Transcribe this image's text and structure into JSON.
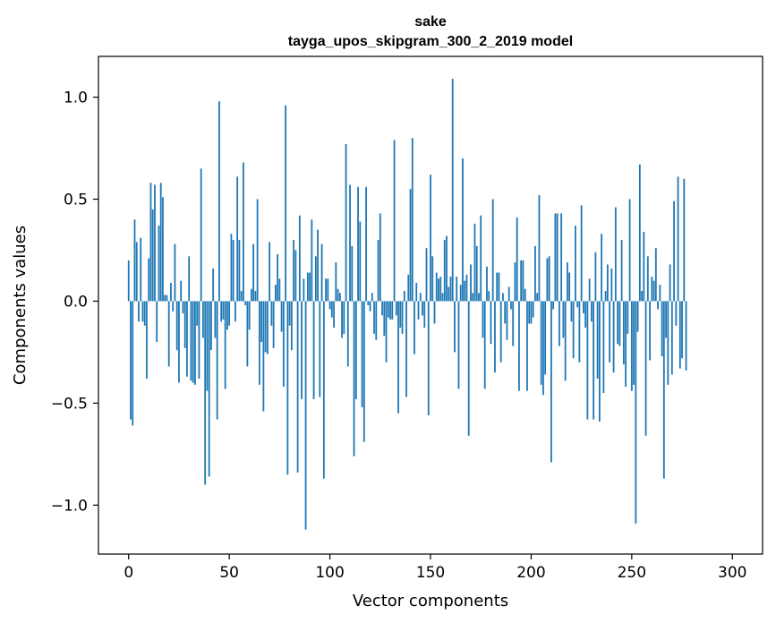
{
  "chart_data": {
    "type": "bar",
    "title_line1": "sake",
    "title_line2": "tayga_upos_skipgram_300_2_2019 model",
    "xlabel": "Vector components",
    "ylabel": "Components values",
    "xlim": [
      -15,
      315
    ],
    "ylim": [
      -1.24,
      1.2
    ],
    "xticks": [
      0,
      50,
      100,
      150,
      200,
      250,
      300
    ],
    "xtick_labels": [
      "0",
      "50",
      "100",
      "150",
      "200",
      "250",
      "300"
    ],
    "yticks": [
      -1.0,
      -0.5,
      0.0,
      0.5,
      1.0
    ],
    "ytick_labels": [
      "−1.0",
      "−0.5",
      "0.0",
      "0.5",
      "1.0"
    ],
    "bar_color": "#1f77b4",
    "values": [
      0.2,
      -0.58,
      -0.61,
      0.4,
      0.29,
      -0.1,
      0.31,
      -0.1,
      -0.12,
      -0.38,
      0.21,
      0.58,
      0.45,
      0.57,
      -0.2,
      0.37,
      0.58,
      0.51,
      0.03,
      0.03,
      -0.32,
      0.09,
      -0.05,
      0.28,
      -0.24,
      -0.4,
      0.1,
      -0.06,
      -0.23,
      -0.37,
      0.22,
      -0.39,
      -0.4,
      -0.41,
      -0.12,
      -0.38,
      0.65,
      -0.18,
      -0.9,
      -0.44,
      -0.86,
      -0.24,
      0.16,
      -0.18,
      -0.58,
      0.98,
      -0.1,
      -0.09,
      -0.43,
      -0.14,
      -0.12,
      0.33,
      0.3,
      -0.1,
      0.61,
      0.3,
      0.05,
      0.68,
      -0.02,
      -0.32,
      -0.14,
      0.06,
      0.28,
      0.05,
      0.5,
      -0.41,
      -0.2,
      -0.54,
      -0.25,
      -0.26,
      0.29,
      -0.12,
      -0.23,
      0.08,
      0.23,
      0.11,
      -0.15,
      -0.42,
      0.96,
      -0.85,
      -0.12,
      -0.24,
      0.3,
      0.25,
      -0.84,
      0.42,
      -0.48,
      0.11,
      -1.12,
      0.14,
      0.14,
      0.4,
      -0.48,
      0.22,
      0.35,
      -0.47,
      0.28,
      -0.87,
      0.11,
      0.11,
      -0.04,
      -0.08,
      -0.13,
      0.19,
      0.06,
      0.04,
      -0.18,
      -0.16,
      0.77,
      -0.32,
      0.57,
      0.27,
      -0.76,
      -0.48,
      0.56,
      0.39,
      -0.52,
      -0.69,
      0.56,
      -0.02,
      -0.05,
      0.04,
      -0.16,
      -0.19,
      0.3,
      0.43,
      -0.07,
      -0.17,
      -0.3,
      -0.08,
      -0.09,
      -0.09,
      0.79,
      -0.07,
      -0.55,
      -0.13,
      -0.16,
      0.05,
      -0.47,
      0.13,
      0.55,
      0.8,
      -0.26,
      0.09,
      -0.09,
      0.04,
      -0.07,
      -0.13,
      0.26,
      -0.56,
      0.62,
      0.22,
      -0.11,
      0.14,
      0.11,
      0.12,
      0.04,
      0.3,
      0.32,
      0.07,
      0.12,
      1.09,
      -0.25,
      0.12,
      -0.43,
      0.08,
      0.7,
      0.1,
      0.13,
      -0.66,
      0.18,
      0.04,
      0.38,
      0.27,
      0.04,
      0.42,
      -0.18,
      -0.43,
      0.17,
      0.05,
      -0.21,
      0.5,
      -0.35,
      0.14,
      0.14,
      -0.3,
      0.04,
      -0.11,
      -0.19,
      0.07,
      -0.04,
      -0.22,
      0.19,
      0.41,
      -0.44,
      0.2,
      0.2,
      0.06,
      -0.44,
      -0.11,
      -0.11,
      -0.08,
      0.27,
      0.04,
      0.52,
      -0.41,
      -0.46,
      -0.36,
      0.21,
      0.22,
      -0.79,
      -0.04,
      0.43,
      0.43,
      -0.22,
      0.43,
      -0.18,
      -0.39,
      0.19,
      0.14,
      -0.1,
      -0.28,
      0.37,
      -0.03,
      -0.3,
      0.47,
      -0.06,
      -0.13,
      -0.58,
      0.11,
      -0.1,
      -0.58,
      0.24,
      -0.38,
      -0.59,
      0.33,
      -0.45,
      0.05,
      0.18,
      -0.3,
      0.16,
      -0.35,
      0.46,
      -0.21,
      -0.22,
      0.3,
      -0.31,
      -0.42,
      -0.16,
      0.5,
      -0.44,
      -0.41,
      -1.09,
      -0.15,
      0.67,
      0.05,
      0.34,
      -0.66,
      0.22,
      -0.29,
      0.12,
      0.1,
      0.26,
      -0.04,
      0.08,
      -0.27,
      -0.87,
      -0.18,
      -0.41,
      0.18,
      -0.36,
      0.49,
      -0.12,
      0.61,
      -0.33,
      -0.28,
      0.6,
      -0.34
    ]
  }
}
